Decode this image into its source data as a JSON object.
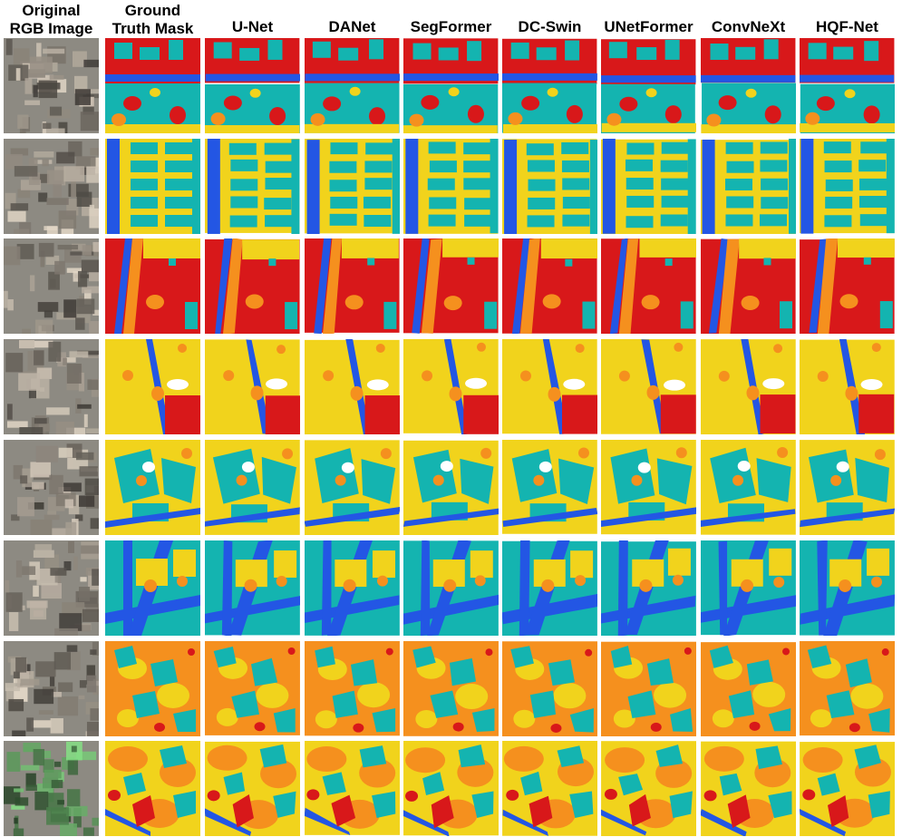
{
  "figure": {
    "columns": [
      {
        "line1": "Original",
        "line2": "RGB Image",
        "kind": "rgb"
      },
      {
        "line1": "Ground",
        "line2": "Truth Mask",
        "kind": "mask"
      },
      {
        "line1": "",
        "line2": "U-Net",
        "kind": "mask"
      },
      {
        "line1": "",
        "line2": "DANet",
        "kind": "mask"
      },
      {
        "line1": "",
        "line2": "SegFormer",
        "kind": "mask"
      },
      {
        "line1": "",
        "line2": "DC-Swin",
        "kind": "mask"
      },
      {
        "line1": "",
        "line2": "UNetFormer",
        "kind": "mask"
      },
      {
        "line1": "",
        "line2": "ConvNeXt",
        "kind": "mask"
      },
      {
        "line1": "",
        "line2": "HQF-Net",
        "kind": "mask"
      }
    ],
    "rows": [
      {
        "scene": "scene-1",
        "dominant": "teal",
        "secondary": "red"
      },
      {
        "scene": "scene-2",
        "dominant": "yellow",
        "secondary": "teal"
      },
      {
        "scene": "scene-3",
        "dominant": "red",
        "secondary": "yellow"
      },
      {
        "scene": "scene-4",
        "dominant": "yellow",
        "secondary": "red"
      },
      {
        "scene": "scene-5",
        "dominant": "yellow",
        "secondary": "teal"
      },
      {
        "scene": "scene-6",
        "dominant": "teal",
        "secondary": "blue"
      },
      {
        "scene": "scene-7",
        "dominant": "orange",
        "secondary": "teal"
      },
      {
        "scene": "scene-8",
        "dominant": "orange",
        "secondary": "teal"
      }
    ],
    "palette": {
      "teal": "#14b4b0",
      "yellow": "#f1d31c",
      "red": "#d8181a",
      "orange": "#f5901e",
      "blue": "#2356e4",
      "white": "#ffffff",
      "rgb_base": "#8d8a82"
    }
  }
}
